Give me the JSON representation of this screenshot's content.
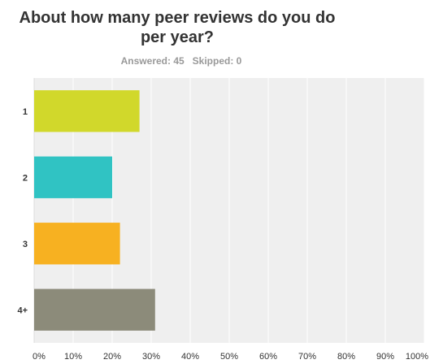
{
  "chart_data": {
    "type": "bar",
    "orientation": "horizontal",
    "title": "About how many peer reviews do you do per year?",
    "title_lines": [
      "About how many peer reviews do you do",
      "per year?"
    ],
    "answered": "Answered: 45",
    "skipped": "Skipped: 0",
    "categories": [
      "1",
      "2",
      "3",
      "4+"
    ],
    "values": [
      27,
      20,
      22,
      31
    ],
    "colors": [
      "#d1d82b",
      "#30c3c3",
      "#f7b121",
      "#8c8b7a"
    ],
    "xlim": [
      0,
      100
    ],
    "x_ticks": [
      "0%",
      "10%",
      "20%",
      "30%",
      "40%",
      "50%",
      "60%",
      "70%",
      "80%",
      "90%",
      "100%"
    ],
    "grid": true,
    "plot_background": "#efefef"
  }
}
